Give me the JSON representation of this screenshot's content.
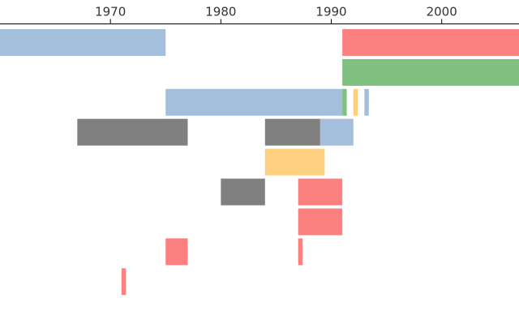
{
  "chart_data": {
    "type": "bar",
    "orientation": "horizontal-timeline",
    "title": "",
    "xlabel": "",
    "ylabel": "",
    "xlim": [
      1960,
      2007
    ],
    "x_axis_position": "top",
    "grid": false,
    "legend": "none",
    "x_ticks": [
      "1970",
      "1980",
      "1990",
      "2000"
    ],
    "x_tick_values": [
      1970,
      1980,
      1990,
      2000
    ],
    "colors": {
      "blue": "#a3bfdc",
      "red": "#fd8080",
      "green": "#80c080",
      "gray": "#808080",
      "yellow": "#fdd080"
    },
    "rows": 10,
    "segments": [
      {
        "row": 0,
        "start": 1960,
        "end": 1975.0,
        "color": "blue"
      },
      {
        "row": 0,
        "start": 1991.0,
        "end": 2007,
        "color": "red"
      },
      {
        "row": 1,
        "start": 1991.0,
        "end": 2007,
        "color": "green"
      },
      {
        "row": 2,
        "start": 1975.0,
        "end": 1991.0,
        "color": "blue"
      },
      {
        "row": 2,
        "start": 1991.0,
        "end": 1991.4,
        "color": "green"
      },
      {
        "row": 2,
        "start": 1992.0,
        "end": 1992.4,
        "color": "yellow"
      },
      {
        "row": 2,
        "start": 1993.0,
        "end": 1993.4,
        "color": "blue"
      },
      {
        "row": 3,
        "start": 1967.0,
        "end": 1977.0,
        "color": "gray"
      },
      {
        "row": 3,
        "start": 1984.0,
        "end": 1989.0,
        "color": "gray"
      },
      {
        "row": 3,
        "start": 1989.0,
        "end": 1992.0,
        "color": "blue"
      },
      {
        "row": 4,
        "start": 1984.0,
        "end": 1989.4,
        "color": "yellow"
      },
      {
        "row": 5,
        "start": 1980.0,
        "end": 1984.0,
        "color": "gray"
      },
      {
        "row": 5,
        "start": 1987.0,
        "end": 1991.0,
        "color": "red"
      },
      {
        "row": 6,
        "start": 1987.0,
        "end": 1991.0,
        "color": "red"
      },
      {
        "row": 7,
        "start": 1975.0,
        "end": 1977.0,
        "color": "red"
      },
      {
        "row": 7,
        "start": 1987.0,
        "end": 1987.4,
        "color": "red"
      },
      {
        "row": 8,
        "start": 1971.0,
        "end": 1971.4,
        "color": "red"
      }
    ]
  }
}
